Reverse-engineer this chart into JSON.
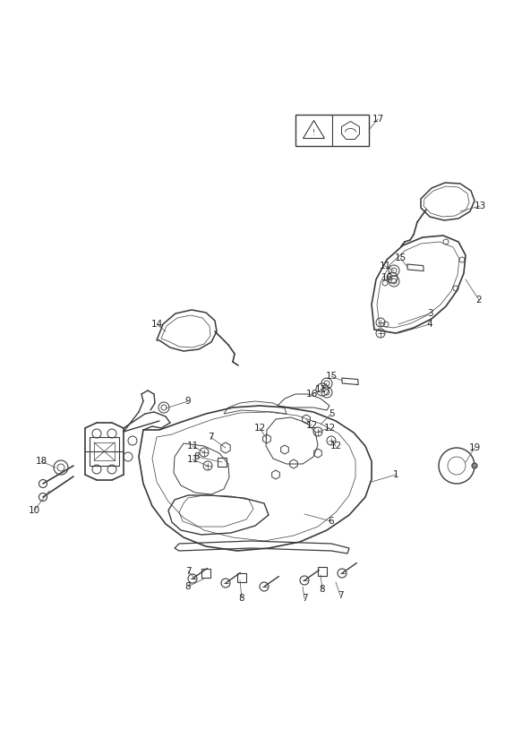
{
  "bg_color": "#ffffff",
  "line_color": "#3a3a3a",
  "label_color": "#222222",
  "fig_width": 5.83,
  "fig_height": 8.24,
  "dpi": 100
}
